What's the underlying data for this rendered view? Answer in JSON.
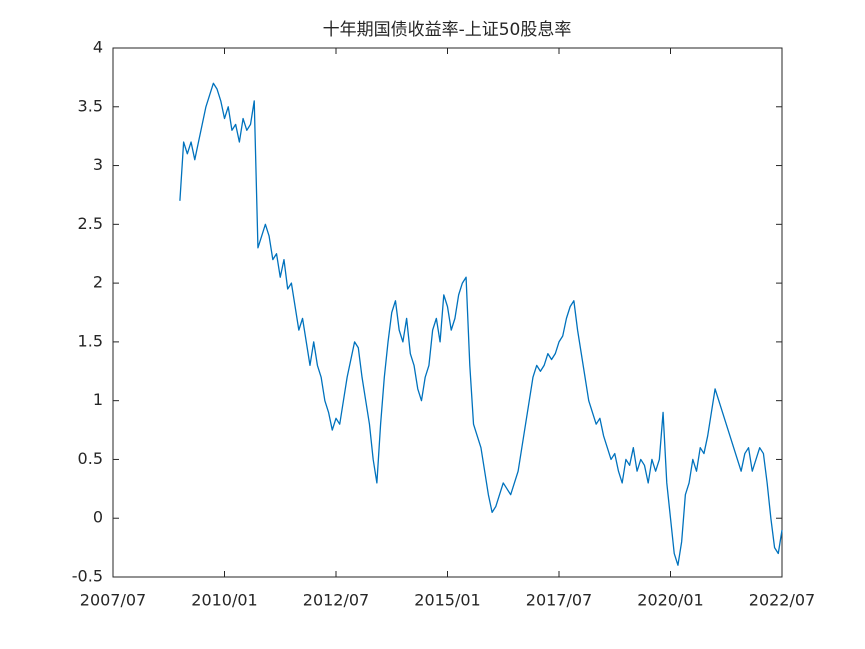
{
  "chart_data": {
    "type": "line",
    "title": "十年期国债收益率-上证50股息率",
    "color": "#0072bd",
    "x": [
      "2009/01",
      "2009/02",
      "2009/03",
      "2009/04",
      "2009/05",
      "2009/06",
      "2009/07",
      "2009/08",
      "2009/09",
      "2009/10",
      "2009/11",
      "2009/12",
      "2010/01",
      "2010/02",
      "2010/03",
      "2010/04",
      "2010/05",
      "2010/06",
      "2010/07",
      "2010/08",
      "2010/09",
      "2010/10",
      "2010/11",
      "2010/12",
      "2011/01",
      "2011/02",
      "2011/03",
      "2011/04",
      "2011/05",
      "2011/06",
      "2011/07",
      "2011/08",
      "2011/09",
      "2011/10",
      "2011/11",
      "2011/12",
      "2012/01",
      "2012/02",
      "2012/03",
      "2012/04",
      "2012/05",
      "2012/06",
      "2012/07",
      "2012/08",
      "2012/09",
      "2012/10",
      "2012/11",
      "2012/12",
      "2013/01",
      "2013/02",
      "2013/03",
      "2013/04",
      "2013/05",
      "2013/06",
      "2013/07",
      "2013/08",
      "2013/09",
      "2013/10",
      "2013/11",
      "2013/12",
      "2014/01",
      "2014/02",
      "2014/03",
      "2014/04",
      "2014/05",
      "2014/06",
      "2014/07",
      "2014/08",
      "2014/09",
      "2014/10",
      "2014/11",
      "2014/12",
      "2015/01",
      "2015/02",
      "2015/03",
      "2015/04",
      "2015/05",
      "2015/06",
      "2015/07",
      "2015/08",
      "2015/09",
      "2015/10",
      "2015/11",
      "2015/12",
      "2016/01",
      "2016/02",
      "2016/03",
      "2016/04",
      "2016/05",
      "2016/06",
      "2016/07",
      "2016/08",
      "2016/09",
      "2016/10",
      "2016/11",
      "2016/12",
      "2017/01",
      "2017/02",
      "2017/03",
      "2017/04",
      "2017/05",
      "2017/06",
      "2017/07",
      "2017/08",
      "2017/09",
      "2017/10",
      "2017/11",
      "2017/12",
      "2018/01",
      "2018/02",
      "2018/03",
      "2018/04",
      "2018/05",
      "2018/06",
      "2018/07",
      "2018/08",
      "2018/09",
      "2018/10",
      "2018/11",
      "2018/12",
      "2019/01",
      "2019/02",
      "2019/03",
      "2019/04",
      "2019/05",
      "2019/06",
      "2019/07",
      "2019/08",
      "2019/09",
      "2019/10",
      "2019/11",
      "2019/12",
      "2020/01",
      "2020/02",
      "2020/03",
      "2020/04",
      "2020/05",
      "2020/06",
      "2020/07",
      "2020/08",
      "2020/09",
      "2020/10",
      "2020/11",
      "2020/12",
      "2021/01",
      "2021/02",
      "2021/03",
      "2021/04",
      "2021/05",
      "2021/06",
      "2021/07",
      "2021/08",
      "2021/09",
      "2021/10",
      "2021/11",
      "2021/12",
      "2022/01",
      "2022/02",
      "2022/03",
      "2022/04",
      "2022/05",
      "2022/06",
      "2022/07"
    ],
    "values": [
      2.7,
      3.2,
      3.1,
      3.2,
      3.05,
      3.2,
      3.35,
      3.5,
      3.6,
      3.7,
      3.65,
      3.55,
      3.4,
      3.5,
      3.3,
      3.35,
      3.2,
      3.4,
      3.3,
      3.35,
      3.55,
      2.3,
      2.4,
      2.5,
      2.4,
      2.2,
      2.25,
      2.05,
      2.2,
      1.95,
      2.0,
      1.8,
      1.6,
      1.7,
      1.5,
      1.3,
      1.5,
      1.3,
      1.2,
      1.0,
      0.9,
      0.75,
      0.85,
      0.8,
      1.0,
      1.2,
      1.35,
      1.5,
      1.45,
      1.2,
      1.0,
      0.8,
      0.5,
      0.3,
      0.8,
      1.2,
      1.5,
      1.75,
      1.85,
      1.6,
      1.5,
      1.7,
      1.4,
      1.3,
      1.1,
      1.0,
      1.2,
      1.3,
      1.6,
      1.7,
      1.5,
      1.9,
      1.8,
      1.6,
      1.7,
      1.9,
      2.0,
      2.05,
      1.3,
      0.8,
      0.7,
      0.6,
      0.4,
      0.2,
      0.05,
      0.1,
      0.2,
      0.3,
      0.25,
      0.2,
      0.3,
      0.4,
      0.6,
      0.8,
      1.0,
      1.2,
      1.3,
      1.25,
      1.3,
      1.4,
      1.35,
      1.4,
      1.5,
      1.55,
      1.7,
      1.8,
      1.85,
      1.6,
      1.4,
      1.2,
      1.0,
      0.9,
      0.8,
      0.85,
      0.7,
      0.6,
      0.5,
      0.55,
      0.4,
      0.3,
      0.5,
      0.45,
      0.6,
      0.4,
      0.5,
      0.45,
      0.3,
      0.5,
      0.4,
      0.5,
      0.9,
      0.3,
      0.0,
      -0.3,
      -0.4,
      -0.2,
      0.2,
      0.3,
      0.5,
      0.4,
      0.6,
      0.55,
      0.7,
      0.9,
      1.1,
      1.0,
      0.9,
      0.8,
      0.7,
      0.6,
      0.5,
      0.4,
      0.55,
      0.6,
      0.4,
      0.5,
      0.6,
      0.55,
      0.3,
      0.0,
      -0.25,
      -0.3,
      -0.1
    ],
    "xlim": [
      "2007/07",
      "2022/07"
    ],
    "xticks": [
      "2007/07",
      "2010/01",
      "2012/07",
      "2015/01",
      "2017/07",
      "2020/01",
      "2022/07"
    ],
    "ylim": [
      -0.5,
      4
    ],
    "yticks": [
      -0.5,
      0,
      0.5,
      1,
      1.5,
      2,
      2.5,
      3,
      3.5,
      4
    ]
  }
}
